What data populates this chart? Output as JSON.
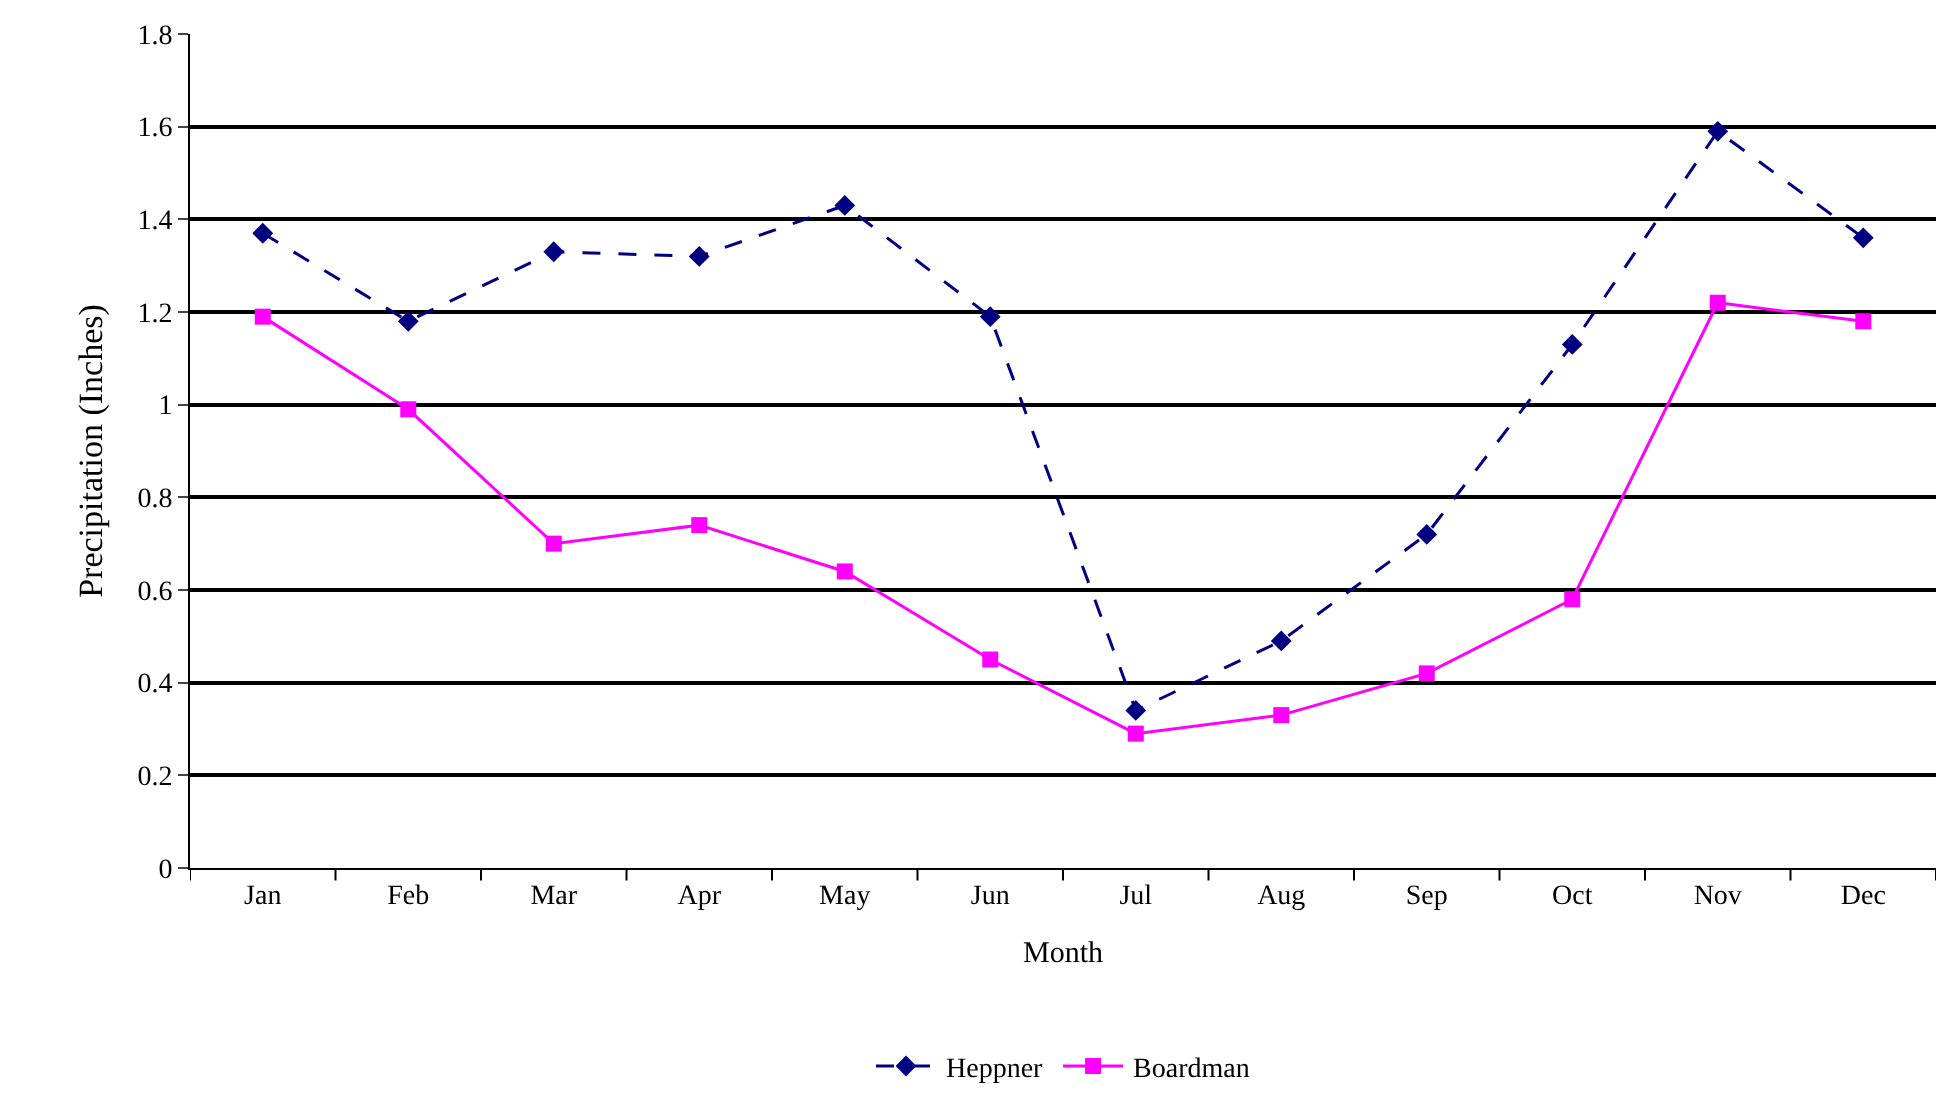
{
  "chart_data": {
    "type": "line",
    "xlabel": "Month",
    "ylabel": "Precipitation (Inches)",
    "categories": [
      "Jan",
      "Feb",
      "Mar",
      "Apr",
      "May",
      "Jun",
      "Jul",
      "Aug",
      "Sep",
      "Oct",
      "Nov",
      "Dec"
    ],
    "series": [
      {
        "name": "Heppner",
        "color": "#000080",
        "marker": "diamond",
        "line_style": "dashed",
        "values": [
          1.37,
          1.18,
          1.33,
          1.32,
          1.43,
          1.19,
          0.34,
          0.49,
          0.72,
          1.13,
          1.59,
          1.36
        ]
      },
      {
        "name": "Boardman",
        "color": "#ff00ff",
        "marker": "square",
        "line_style": "solid",
        "values": [
          1.19,
          0.99,
          0.7,
          0.74,
          0.64,
          0.45,
          0.29,
          0.33,
          0.42,
          0.58,
          1.22,
          1.18
        ]
      }
    ],
    "ylim": [
      0,
      1.8
    ],
    "yticks": [
      0,
      0.2,
      0.4,
      0.6,
      0.8,
      1,
      1.2,
      1.4,
      1.6,
      1.8
    ],
    "grid": "y",
    "legend": "bottom"
  }
}
